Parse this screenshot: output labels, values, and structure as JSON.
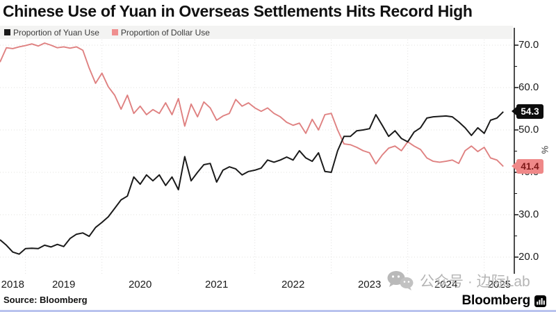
{
  "title": "Chinese Use of Yuan in Overseas Settlements Hits Record High",
  "legend": [
    {
      "label": "Proportion of Yuan Use",
      "color": "#1a1a1a"
    },
    {
      "label": "Proportion of Dollar Use",
      "color": "#ef8f8f"
    }
  ],
  "source": "Source: Bloomberg",
  "brand": {
    "wordmark": "Bloomberg",
    "icon": "bloomberg-terminal-icon"
  },
  "watermark": {
    "text": "公众号 · 边际Lab",
    "icon": "wechat-icon"
  },
  "y_axis_unit": "%",
  "chart_data": {
    "type": "line",
    "x_start": "2018-09",
    "x_interval": "monthly",
    "x_year_labels": [
      2018,
      2019,
      2020,
      2021,
      2022,
      2023,
      2024,
      2025
    ],
    "y_ticks": [
      20,
      30,
      40,
      50,
      60,
      70
    ],
    "y_minor_ticks": [
      25,
      35,
      45,
      55,
      65
    ],
    "ylim": [
      18,
      72.5
    ],
    "grid": "dotted",
    "legend_position": "top-left",
    "series": [
      {
        "name": "Proportion of Yuan Use",
        "color": "#1a1a1a",
        "last_label": "54.3",
        "values": [
          24.1,
          22.8,
          21.2,
          20.7,
          22.0,
          22.1,
          22.0,
          22.8,
          22.4,
          23.0,
          22.5,
          24.4,
          25.4,
          25.7,
          24.9,
          27.0,
          28.2,
          29.5,
          31.5,
          33.5,
          34.4,
          38.9,
          37.2,
          39.4,
          38.0,
          39.4,
          36.9,
          38.9,
          35.9,
          43.7,
          38.0,
          40.0,
          41.8,
          42.1,
          37.7,
          40.5,
          41.3,
          40.8,
          39.4,
          40.2,
          40.5,
          41.0,
          42.9,
          42.4,
          42.9,
          43.6,
          42.9,
          45.1,
          43.4,
          42.6,
          44.6,
          40.2,
          40.0,
          45.1,
          48.5,
          48.5,
          49.8,
          50.0,
          50.3,
          53.6,
          51.1,
          48.5,
          49.8,
          48.0,
          47.2,
          49.5,
          50.5,
          52.8,
          53.1,
          53.2,
          53.3,
          53.1,
          51.9,
          50.5,
          48.7,
          50.5,
          49.2,
          52.3,
          52.8,
          54.3
        ]
      },
      {
        "name": "Proportion of Dollar Use",
        "color": "#df8181",
        "last_label": "41.4",
        "values": [
          66.0,
          69.4,
          69.2,
          69.6,
          69.9,
          70.3,
          69.8,
          70.5,
          70.0,
          69.4,
          69.6,
          69.3,
          69.6,
          68.8,
          64.6,
          61.0,
          63.4,
          60.2,
          58.2,
          54.9,
          58.2,
          53.9,
          55.6,
          53.6,
          54.8,
          53.9,
          56.4,
          53.6,
          57.4,
          50.9,
          56.1,
          53.1,
          56.6,
          55.2,
          52.3,
          53.3,
          53.9,
          57.2,
          55.6,
          56.4,
          55.2,
          54.4,
          55.2,
          53.9,
          53.1,
          51.8,
          51.1,
          51.6,
          49.2,
          52.5,
          50.0,
          53.6,
          53.9,
          50.0,
          46.7,
          46.5,
          45.9,
          45.1,
          44.6,
          42.0,
          44.1,
          45.7,
          46.2,
          45.1,
          47.2,
          46.2,
          45.4,
          43.4,
          42.6,
          42.4,
          42.6,
          42.9,
          42.1,
          45.1,
          46.2,
          44.9,
          45.9,
          43.4,
          42.9,
          41.4
        ]
      }
    ]
  }
}
